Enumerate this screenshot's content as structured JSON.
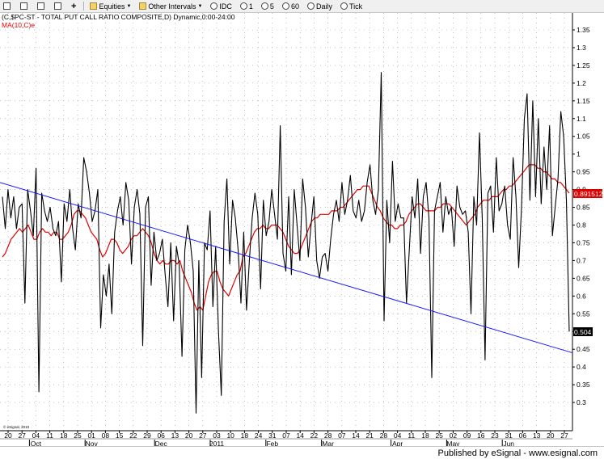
{
  "toolbar": {
    "equities_label": "Equities",
    "other_intervals_label": "Other Intervals",
    "interval_idc": "IDC",
    "interval_1": "1",
    "interval_5": "5",
    "interval_60": "60",
    "interval_daily": "Daily",
    "interval_tick": "Tick"
  },
  "chart": {
    "header_line": "(C,$PC-ST - TOTAL PUT CALL RATIO COMPOSITE,D) Dynamic,0:00-24:00",
    "ma_label": "MA(10,C)e",
    "last_value": "0.504",
    "ma_last_value": "0.891512",
    "copyright": "© eSignal, 2010",
    "colors": {
      "price": "#000000",
      "ma": "#e00000",
      "trend": "#1a1aff",
      "grid": "#9a9a9a"
    }
  },
  "footer": {
    "published": "Published by eSignal - www.esignal.com"
  },
  "chart_data": {
    "type": "line",
    "ylim": [
      0.25,
      1.35
    ],
    "yticks": [
      "0.3",
      "0.35",
      "0.4",
      "0.45",
      "0.5",
      "0.55",
      "0.6",
      "0.65",
      "0.7",
      "0.75",
      "0.8",
      "0.85",
      "0.9",
      "0.95",
      "1",
      "1.05",
      "1.1",
      "1.15",
      "1.2",
      "1.25",
      "1.3",
      "1.35"
    ],
    "x_day_labels": [
      "20",
      "27",
      "04",
      "11",
      "18",
      "25",
      "01",
      "08",
      "15",
      "22",
      "29",
      "06",
      "13",
      "20",
      "27",
      "03",
      "10",
      "18",
      "24",
      "31",
      "07",
      "14",
      "22",
      "28",
      "07",
      "14",
      "21",
      "28",
      "04",
      "11",
      "18",
      "25",
      "02",
      "09",
      "16",
      "23",
      "31",
      "06",
      "13",
      "20",
      "27"
    ],
    "x_month_labels": [
      {
        "label": "Oct",
        "at": 2
      },
      {
        "label": "Nov",
        "at": 6
      },
      {
        "label": "Dec",
        "at": 11
      },
      {
        "label": "2011",
        "at": 15
      },
      {
        "label": "Feb",
        "at": 19
      },
      {
        "label": "Mar",
        "at": 23
      },
      {
        "label": "Apr",
        "at": 28
      },
      {
        "label": "May",
        "at": 32
      },
      {
        "label": "Jun",
        "at": 36
      }
    ],
    "series": [
      {
        "name": "(C,$PC-ST - TOTAL PUT CALL RATIO COMPOSITE,D)",
        "values": [
          0.88,
          0.79,
          0.9,
          0.82,
          0.88,
          0.79,
          0.85,
          0.86,
          0.58,
          0.9,
          0.84,
          0.77,
          0.96,
          0.33,
          0.89,
          0.84,
          0.81,
          0.85,
          0.79,
          0.77,
          0.81,
          0.64,
          0.86,
          0.81,
          0.9,
          0.79,
          0.73,
          0.86,
          0.82,
          0.99,
          0.95,
          0.89,
          0.81,
          0.84,
          0.9,
          0.51,
          0.66,
          0.6,
          0.69,
          0.55,
          0.78,
          0.84,
          0.88,
          0.8,
          0.92,
          0.87,
          0.69,
          0.85,
          0.9,
          0.83,
          0.46,
          0.85,
          0.88,
          0.63,
          0.78,
          0.7,
          0.72,
          0.76,
          0.66,
          0.57,
          0.75,
          0.53,
          0.74,
          0.69,
          0.43,
          0.73,
          0.8,
          0.75,
          0.67,
          0.27,
          0.7,
          0.37,
          0.75,
          0.73,
          0.84,
          0.57,
          0.74,
          0.5,
          0.32,
          0.81,
          0.93,
          0.69,
          0.87,
          0.82,
          0.73,
          0.58,
          0.78,
          0.56,
          0.7,
          0.82,
          0.89,
          0.83,
          0.62,
          0.87,
          0.77,
          0.81,
          0.9,
          0.83,
          0.76,
          1.08,
          0.72,
          0.67,
          0.88,
          0.66,
          0.9,
          0.8,
          0.7,
          0.93,
          0.85,
          0.71,
          0.8,
          0.88,
          0.7,
          0.65,
          0.71,
          0.72,
          0.67,
          0.76,
          0.83,
          0.87,
          0.81,
          0.92,
          0.83,
          0.87,
          0.94,
          0.84,
          0.82,
          0.87,
          0.81,
          0.84,
          0.92,
          0.97,
          0.87,
          0.83,
          0.9,
          1.23,
          0.53,
          0.87,
          0.75,
          0.98,
          0.81,
          0.86,
          0.82,
          0.82,
          0.58,
          0.73,
          0.88,
          0.82,
          0.93,
          0.72,
          0.88,
          0.92,
          0.82,
          0.37,
          0.84,
          0.88,
          0.92,
          0.78,
          0.88,
          0.83,
          0.85,
          0.74,
          0.91,
          0.85,
          0.83,
          0.84,
          0.78,
          0.55,
          0.88,
          0.8,
          1.06,
          0.82,
          0.42,
          0.89,
          0.91,
          0.78,
          0.99,
          0.84,
          0.86,
          0.91,
          0.8,
          0.76,
          0.99,
          0.88,
          0.68,
          0.85,
          1.1,
          1.17,
          0.87,
          1.15,
          0.88,
          1.1,
          0.86,
          1.02,
          0.9,
          1.08,
          0.77,
          0.85,
          0.93,
          1.12,
          1.05,
          0.87,
          0.5
        ]
      },
      {
        "name": "MA(10,C)e",
        "values": [
          0.71,
          0.72,
          0.74,
          0.76,
          0.77,
          0.78,
          0.79,
          0.78,
          0.79,
          0.8,
          0.78,
          0.76,
          0.76,
          0.78,
          0.79,
          0.78,
          0.78,
          0.77,
          0.78,
          0.78,
          0.76,
          0.76,
          0.77,
          0.78,
          0.8,
          0.83,
          0.84,
          0.84,
          0.83,
          0.82,
          0.8,
          0.78,
          0.77,
          0.76,
          0.73,
          0.71,
          0.72,
          0.74,
          0.76,
          0.76,
          0.75,
          0.73,
          0.72,
          0.73,
          0.74,
          0.76,
          0.77,
          0.77,
          0.78,
          0.79,
          0.78,
          0.77,
          0.75,
          0.72,
          0.7,
          0.69,
          0.7,
          0.69,
          0.69,
          0.7,
          0.7,
          0.69,
          0.7,
          0.67,
          0.65,
          0.63,
          0.61,
          0.58,
          0.56,
          0.57,
          0.56,
          0.6,
          0.64,
          0.66,
          0.67,
          0.67,
          0.64,
          0.62,
          0.61,
          0.6,
          0.62,
          0.64,
          0.66,
          0.67,
          0.71,
          0.72,
          0.74,
          0.76,
          0.78,
          0.79,
          0.79,
          0.8,
          0.79,
          0.79,
          0.8,
          0.8,
          0.8,
          0.79,
          0.78,
          0.76,
          0.74,
          0.73,
          0.72,
          0.72,
          0.73,
          0.75,
          0.77,
          0.79,
          0.81,
          0.82,
          0.82,
          0.83,
          0.83,
          0.83,
          0.83,
          0.84,
          0.84,
          0.84,
          0.85,
          0.85,
          0.86,
          0.87,
          0.88,
          0.89,
          0.9,
          0.9,
          0.91,
          0.91,
          0.91,
          0.89,
          0.87,
          0.85,
          0.84,
          0.82,
          0.81,
          0.8,
          0.8,
          0.79,
          0.79,
          0.8,
          0.8,
          0.81,
          0.83,
          0.84,
          0.85,
          0.86,
          0.86,
          0.85,
          0.84,
          0.84,
          0.84,
          0.84,
          0.85,
          0.85,
          0.86,
          0.86,
          0.86,
          0.85,
          0.84,
          0.83,
          0.82,
          0.81,
          0.8,
          0.81,
          0.82,
          0.83,
          0.85,
          0.86,
          0.87,
          0.87,
          0.87,
          0.88,
          0.88,
          0.88,
          0.89,
          0.9,
          0.9,
          0.91,
          0.91,
          0.92,
          0.93,
          0.94,
          0.95,
          0.96,
          0.97,
          0.97,
          0.97,
          0.96,
          0.96,
          0.95,
          0.95,
          0.94,
          0.93,
          0.93,
          0.92,
          0.92,
          0.91,
          0.9,
          0.89
        ]
      },
      {
        "name": "trendline",
        "values": [
          0.92,
          0.44
        ]
      }
    ]
  }
}
